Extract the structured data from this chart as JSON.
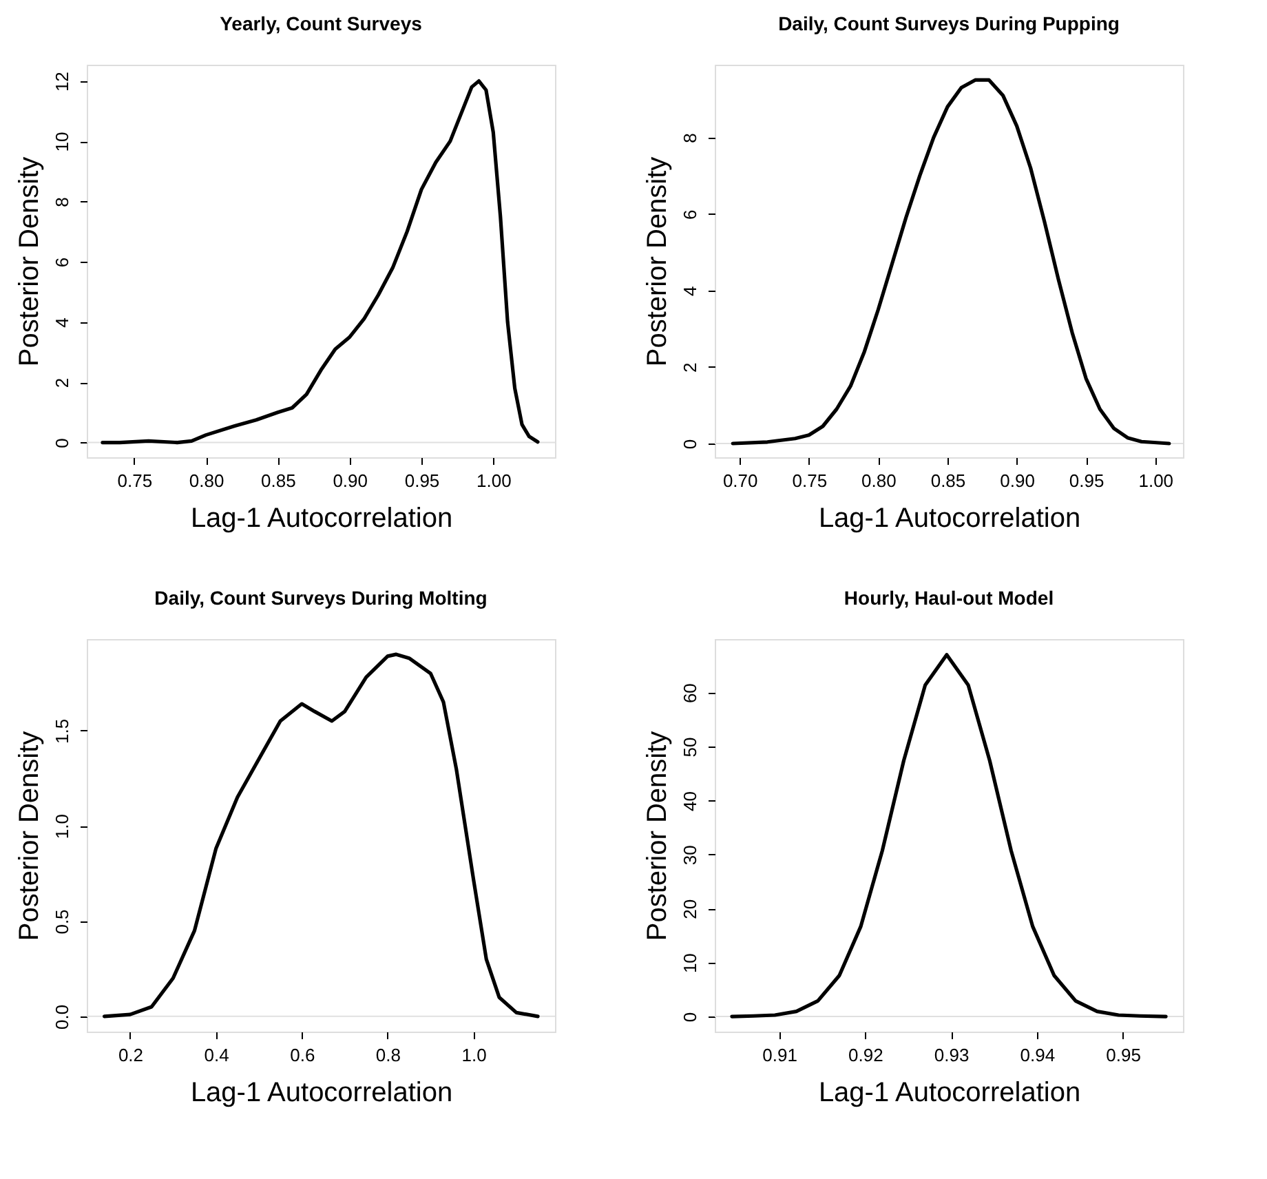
{
  "chart_data": [
    {
      "type": "line",
      "title": "Yearly, Count Surveys",
      "xlabel": "Lag-1 Autocorrelation",
      "ylabel": "Posterior Density",
      "xlim": [
        0.717,
        1.043
      ],
      "ylim": [
        -0.49,
        12.54
      ],
      "xticks": [
        {
          "value": 0.75,
          "label": "0.75"
        },
        {
          "value": 0.8,
          "label": "0.80"
        },
        {
          "value": 0.85,
          "label": "0.85"
        },
        {
          "value": 0.9,
          "label": "0.90"
        },
        {
          "value": 0.95,
          "label": "0.95"
        },
        {
          "value": 1.0,
          "label": "1.00"
        }
      ],
      "yticks": [
        0,
        2,
        4,
        6,
        8,
        10,
        12
      ],
      "grid": false,
      "line_style": "solid",
      "ref_lines": [
        {
          "axis": "y",
          "value": 0,
          "color": "#e0e0e0"
        }
      ],
      "series": [
        {
          "color": "#000000",
          "x": [
            0.728,
            0.74,
            0.76,
            0.78,
            0.79,
            0.8,
            0.82,
            0.835,
            0.85,
            0.86,
            0.87,
            0.88,
            0.89,
            0.9,
            0.91,
            0.92,
            0.93,
            0.94,
            0.95,
            0.96,
            0.97,
            0.98,
            0.985,
            0.99,
            0.995,
            1.0,
            1.005,
            1.01,
            1.015,
            1.02,
            1.025,
            1.031
          ],
          "values": [
            0,
            0,
            0.05,
            0,
            0.05,
            0.25,
            0.55,
            0.75,
            1.0,
            1.15,
            1.6,
            2.4,
            3.1,
            3.5,
            4.1,
            4.9,
            5.8,
            7.0,
            8.4,
            9.3,
            10.0,
            11.2,
            11.8,
            12.0,
            11.7,
            10.3,
            7.5,
            4.0,
            1.8,
            0.6,
            0.2,
            0.02
          ]
        }
      ]
    },
    {
      "type": "line",
      "title": "Daily, Count Surveys During Pupping",
      "xlabel": "Lag-1 Autocorrelation",
      "ylabel": "Posterior Density",
      "xlim": [
        0.682,
        1.02
      ],
      "ylim": [
        -0.36,
        9.9
      ],
      "xticks": [
        {
          "value": 0.7,
          "label": "0.70"
        },
        0.75,
        {
          "value": 0.8,
          "label": "0.80"
        },
        0.85,
        {
          "value": 0.9,
          "label": "0.90"
        },
        0.95,
        {
          "value": 1.0,
          "label": "1.00"
        }
      ],
      "yticks": [
        0,
        2,
        4,
        6,
        8
      ],
      "grid": false,
      "line_style": "solid",
      "ref_lines": [
        {
          "axis": "y",
          "value": 0,
          "color": "#e0e0e0"
        }
      ],
      "series": [
        {
          "color": "#000000",
          "x": [
            0.695,
            0.72,
            0.74,
            0.75,
            0.76,
            0.77,
            0.78,
            0.79,
            0.8,
            0.81,
            0.82,
            0.83,
            0.84,
            0.85,
            0.86,
            0.87,
            0.88,
            0.89,
            0.9,
            0.91,
            0.92,
            0.93,
            0.94,
            0.95,
            0.96,
            0.97,
            0.98,
            0.99,
            1.01
          ],
          "values": [
            0,
            0.04,
            0.13,
            0.22,
            0.45,
            0.9,
            1.5,
            2.4,
            3.5,
            4.7,
            5.9,
            7.0,
            8.0,
            8.8,
            9.3,
            9.5,
            9.5,
            9.1,
            8.3,
            7.2,
            5.8,
            4.3,
            2.9,
            1.7,
            0.9,
            0.4,
            0.15,
            0.05,
            0
          ]
        }
      ]
    },
    {
      "type": "line",
      "title": "Daily, Count Surveys During Molting",
      "xlabel": "Lag-1 Autocorrelation",
      "ylabel": "Posterior Density",
      "xlim": [
        0.099,
        1.19
      ],
      "ylim": [
        -0.08,
        1.98
      ],
      "xticks": [
        0.2,
        0.4,
        0.6,
        0.8,
        {
          "value": 1.0,
          "label": "1.0"
        }
      ],
      "yticks": [
        {
          "value": 0,
          "label": "0.0"
        },
        0.5,
        {
          "value": 1.0,
          "label": "1.0"
        },
        1.5
      ],
      "grid": false,
      "line_style": "solid",
      "ref_lines": [
        {
          "axis": "y",
          "value": 0,
          "color": "#e0e0e0"
        }
      ],
      "series": [
        {
          "color": "#000000",
          "x": [
            0.14,
            0.2,
            0.25,
            0.3,
            0.35,
            0.4,
            0.45,
            0.5,
            0.55,
            0.6,
            0.63,
            0.67,
            0.7,
            0.75,
            0.8,
            0.82,
            0.85,
            0.9,
            0.93,
            0.96,
            1.0,
            1.03,
            1.06,
            1.1,
            1.15
          ],
          "values": [
            0,
            0.01,
            0.05,
            0.2,
            0.45,
            0.88,
            1.15,
            1.35,
            1.55,
            1.64,
            1.6,
            1.55,
            1.6,
            1.78,
            1.89,
            1.9,
            1.88,
            1.8,
            1.65,
            1.3,
            0.72,
            0.3,
            0.1,
            0.02,
            0
          ]
        }
      ]
    },
    {
      "type": "line",
      "title": "Hourly, Haul-out Model",
      "xlabel": "Lag-1 Autocorrelation",
      "ylabel": "Posterior Density",
      "xlim": [
        0.9025,
        0.957
      ],
      "ylim": [
        -2.8,
        69.9
      ],
      "xticks": [
        0.91,
        0.92,
        0.93,
        0.94,
        0.95
      ],
      "yticks": [
        0,
        10,
        20,
        30,
        40,
        50,
        60
      ],
      "grid": false,
      "line_style": "solid",
      "ref_lines": [
        {
          "axis": "y",
          "value": 0,
          "color": "#e0e0e0"
        }
      ],
      "series": [
        {
          "color": "#000000",
          "x": [
            0.9045,
            0.907,
            0.9095,
            0.912,
            0.9145,
            0.917,
            0.9195,
            0.922,
            0.9245,
            0.927,
            0.9295,
            0.932,
            0.9345,
            0.937,
            0.9395,
            0.942,
            0.9445,
            0.947,
            0.9495,
            0.952,
            0.955
          ],
          "values": [
            0,
            0.1,
            0.26,
            0.95,
            2.9,
            7.6,
            16.7,
            30.7,
            47.4,
            61.4,
            67,
            61.4,
            47.4,
            30.7,
            16.7,
            7.6,
            2.9,
            0.95,
            0.26,
            0.1,
            0
          ]
        }
      ]
    }
  ]
}
